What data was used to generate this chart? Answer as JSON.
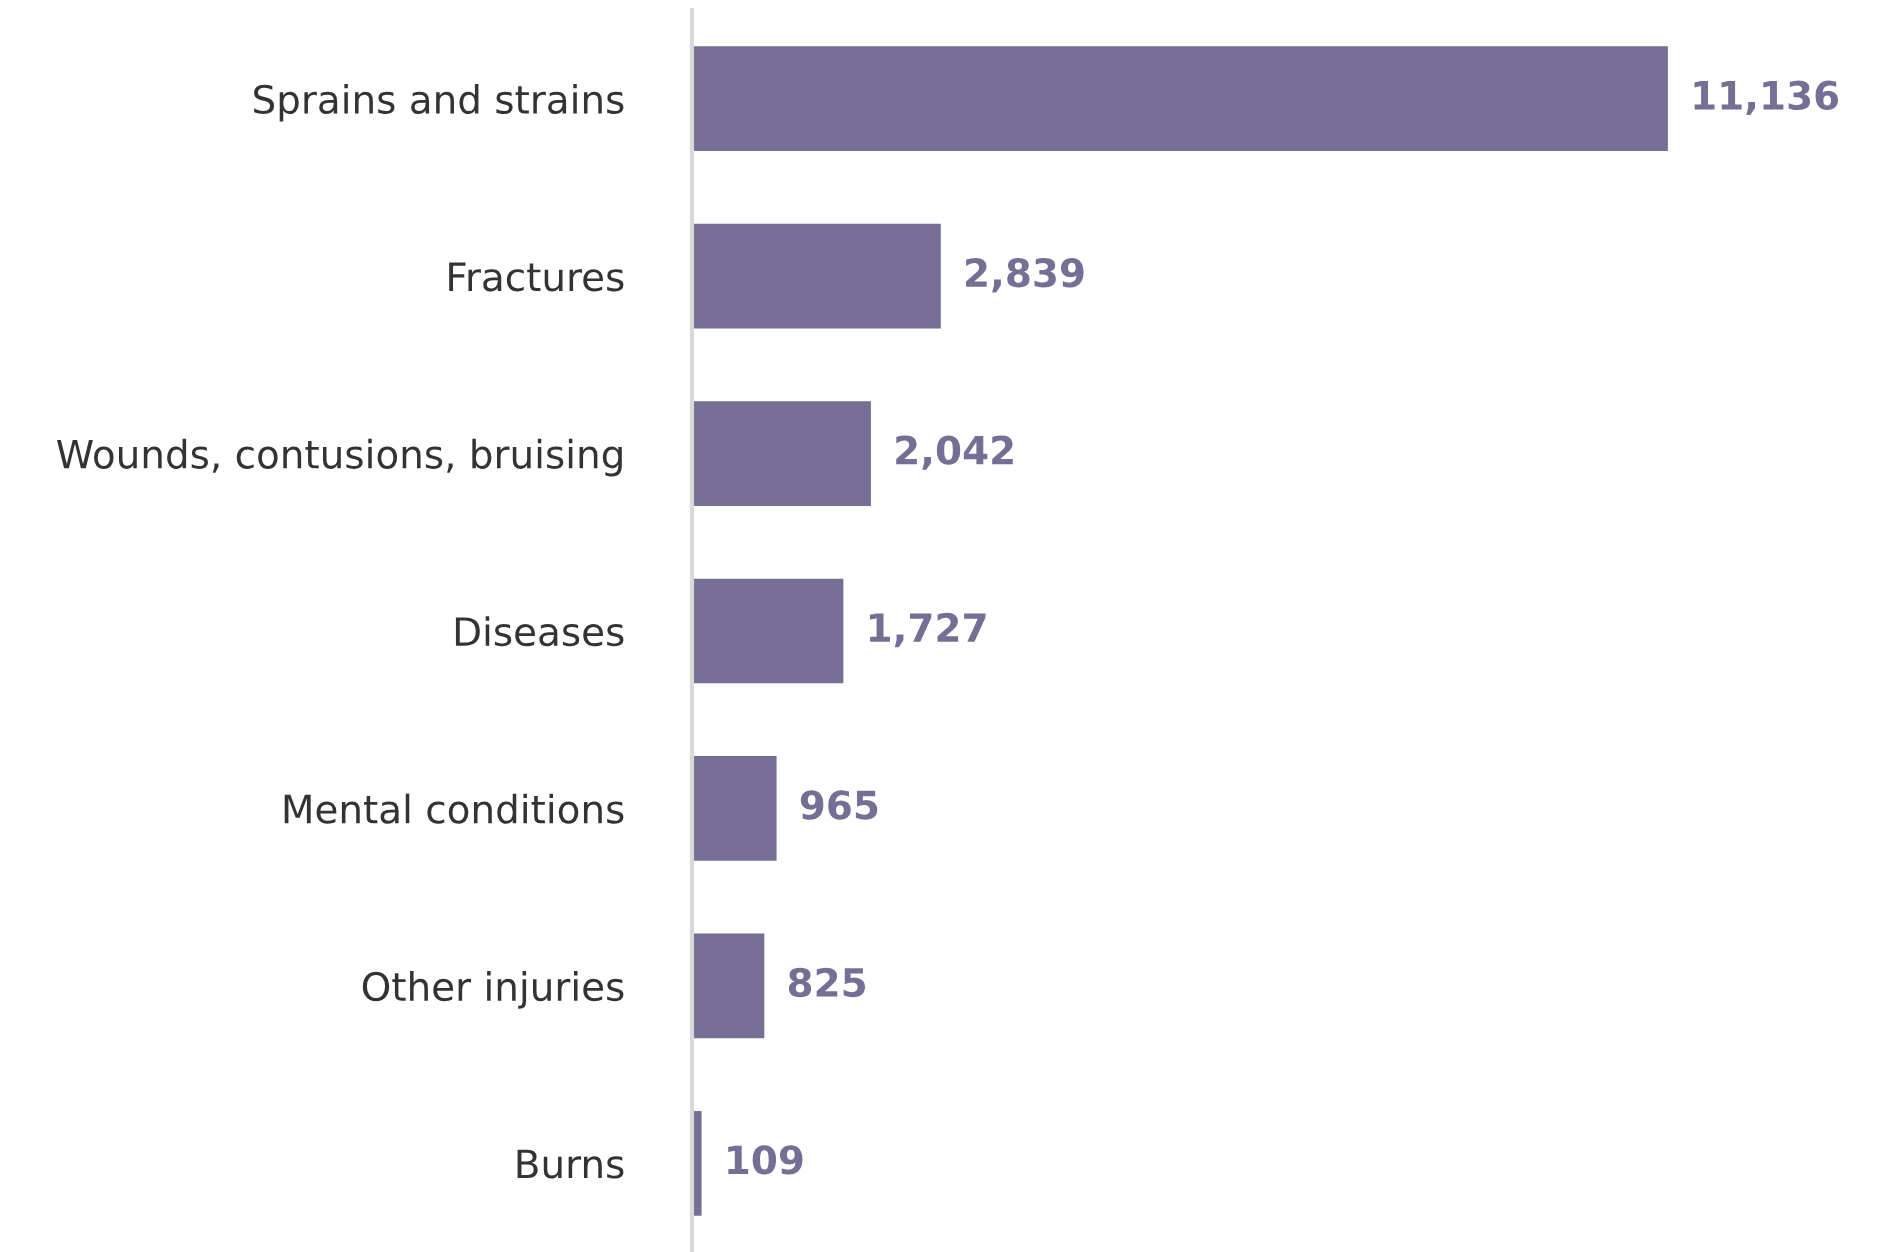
{
  "chart_data": {
    "type": "bar",
    "orientation": "horizontal",
    "categories": [
      "Sprains and strains",
      "Fractures",
      "Wounds, contusions, bruising",
      "Diseases",
      "Mental conditions",
      "Other injuries",
      "Burns"
    ],
    "values": [
      11136,
      2839,
      2042,
      1727,
      965,
      825,
      109
    ],
    "value_labels": [
      "11,136",
      "2,839",
      "2,042",
      "1,727",
      "965",
      "825",
      "109"
    ],
    "color": "#776e96",
    "grid": false,
    "legend": false
  }
}
